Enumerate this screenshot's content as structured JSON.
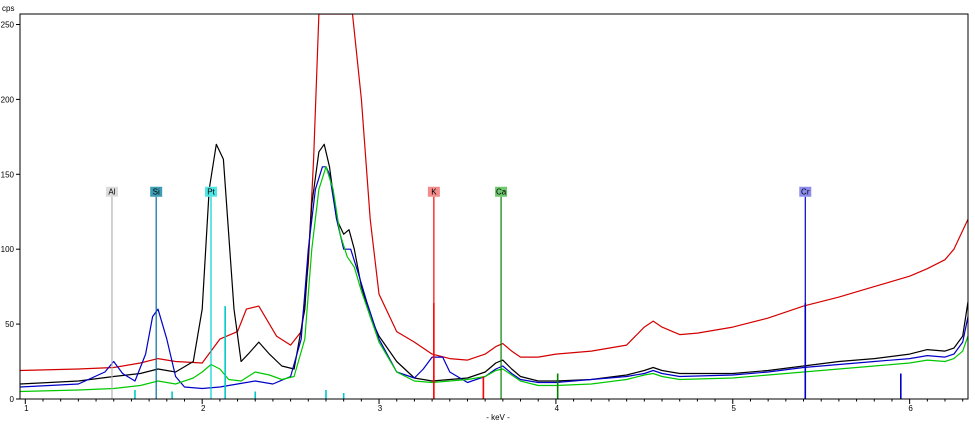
{
  "chart_data": {
    "type": "line",
    "xlabel": "- keV -",
    "ylabel": "cps",
    "xlim": [
      0.97,
      6.33
    ],
    "ylim": [
      0,
      257
    ],
    "x_ticks": [
      1,
      2,
      3,
      4,
      5,
      6
    ],
    "x_tick_labels": [
      "1",
      "2",
      "3",
      "4",
      "5",
      "6"
    ],
    "y_ticks": [
      0,
      50,
      100,
      150,
      200,
      250
    ],
    "y_tick_labels": [
      "0",
      "50",
      "100",
      "150",
      "200",
      "250"
    ],
    "grid": false,
    "series": [
      {
        "color": "#d40000",
        "x": [
          0.97,
          1.3,
          1.5,
          1.65,
          1.75,
          1.85,
          2.0,
          2.1,
          2.2,
          2.25,
          2.32,
          2.42,
          2.5,
          2.56,
          2.6,
          2.63,
          2.66,
          2.7,
          2.75,
          2.8,
          2.85,
          2.9,
          2.95,
          3.0,
          3.1,
          3.2,
          3.3,
          3.4,
          3.5,
          3.6,
          3.66,
          3.7,
          3.75,
          3.8,
          3.9,
          4.0,
          4.2,
          4.4,
          4.5,
          4.55,
          4.6,
          4.7,
          4.8,
          5.0,
          5.2,
          5.4,
          5.6,
          5.8,
          6.0,
          6.1,
          6.2,
          6.25,
          6.33
        ],
        "y": [
          19,
          20,
          21,
          24,
          27,
          25,
          24,
          40,
          45,
          60,
          62,
          42,
          36,
          45,
          90,
          160,
          257,
          257,
          257,
          257,
          257,
          200,
          120,
          70,
          45,
          38,
          30,
          27,
          26,
          30,
          35,
          37,
          32,
          28,
          28,
          30,
          32,
          36,
          48,
          52,
          48,
          43,
          44,
          48,
          54,
          62,
          68,
          75,
          82,
          87,
          93,
          100,
          120
        ]
      },
      {
        "color": "#000000",
        "x": [
          0.97,
          1.3,
          1.5,
          1.65,
          1.75,
          1.85,
          1.95,
          2.0,
          2.04,
          2.08,
          2.12,
          2.18,
          2.22,
          2.26,
          2.32,
          2.38,
          2.45,
          2.52,
          2.58,
          2.62,
          2.66,
          2.69,
          2.72,
          2.76,
          2.8,
          2.83,
          2.86,
          2.9,
          2.95,
          3.0,
          3.1,
          3.2,
          3.3,
          3.4,
          3.5,
          3.6,
          3.66,
          3.7,
          3.75,
          3.8,
          3.9,
          4.0,
          4.2,
          4.4,
          4.5,
          4.55,
          4.6,
          4.7,
          5.0,
          5.2,
          5.4,
          5.6,
          5.8,
          6.0,
          6.1,
          6.2,
          6.25,
          6.3,
          6.33
        ],
        "y": [
          10,
          12,
          15,
          17,
          20,
          18,
          25,
          60,
          140,
          170,
          160,
          60,
          25,
          30,
          38,
          30,
          22,
          20,
          60,
          130,
          165,
          170,
          155,
          120,
          110,
          113,
          100,
          75,
          55,
          42,
          25,
          14,
          12,
          13,
          14,
          18,
          24,
          26,
          20,
          15,
          12,
          12,
          13,
          16,
          19,
          21,
          19,
          17,
          17,
          19,
          22,
          25,
          27,
          30,
          33,
          32,
          34,
          42,
          65
        ]
      },
      {
        "color": "#0000c8",
        "x": [
          0.97,
          1.3,
          1.45,
          1.5,
          1.55,
          1.62,
          1.68,
          1.72,
          1.75,
          1.8,
          1.85,
          1.9,
          2.0,
          2.1,
          2.2,
          2.3,
          2.4,
          2.5,
          2.56,
          2.6,
          2.64,
          2.68,
          2.7,
          2.72,
          2.76,
          2.8,
          2.84,
          2.88,
          2.93,
          3.0,
          3.1,
          3.2,
          3.25,
          3.3,
          3.36,
          3.4,
          3.5,
          3.6,
          3.66,
          3.7,
          3.75,
          3.8,
          3.9,
          4.0,
          4.2,
          4.4,
          4.5,
          4.55,
          4.6,
          4.7,
          5.0,
          5.2,
          5.4,
          5.6,
          5.8,
          6.0,
          6.1,
          6.2,
          6.25,
          6.3,
          6.33
        ],
        "y": [
          8,
          10,
          18,
          25,
          17,
          12,
          30,
          55,
          60,
          40,
          15,
          8,
          7,
          8,
          10,
          12,
          10,
          15,
          40,
          100,
          140,
          155,
          155,
          150,
          120,
          100,
          100,
          85,
          65,
          40,
          18,
          14,
          20,
          28,
          28,
          18,
          11,
          15,
          20,
          22,
          17,
          13,
          11,
          11,
          13,
          15,
          17,
          19,
          17,
          15,
          16,
          18,
          21,
          23,
          25,
          27,
          29,
          28,
          30,
          38,
          55
        ]
      },
      {
        "color": "#00c800",
        "x": [
          0.97,
          1.3,
          1.5,
          1.65,
          1.75,
          1.85,
          1.95,
          2.0,
          2.05,
          2.1,
          2.15,
          2.22,
          2.3,
          2.38,
          2.45,
          2.52,
          2.58,
          2.62,
          2.66,
          2.7,
          2.74,
          2.78,
          2.82,
          2.86,
          2.9,
          2.95,
          3.0,
          3.1,
          3.2,
          3.3,
          3.4,
          3.5,
          3.6,
          3.66,
          3.7,
          3.75,
          3.8,
          3.9,
          4.0,
          4.2,
          4.4,
          4.5,
          4.55,
          4.6,
          4.7,
          5.0,
          5.2,
          5.4,
          5.6,
          5.8,
          6.0,
          6.1,
          6.2,
          6.25,
          6.3,
          6.33
        ],
        "y": [
          5,
          6,
          7,
          9,
          12,
          10,
          14,
          18,
          23,
          20,
          13,
          12,
          18,
          16,
          13,
          15,
          40,
          100,
          140,
          155,
          140,
          110,
          95,
          88,
          72,
          55,
          38,
          18,
          12,
          11,
          12,
          13,
          15,
          19,
          20,
          16,
          12,
          9,
          9,
          10,
          13,
          16,
          17,
          15,
          13,
          14,
          16,
          18,
          20,
          22,
          24,
          26,
          25,
          27,
          32,
          42
        ]
      }
    ],
    "element_markers": [
      {
        "label": "Al",
        "x": 1.49,
        "height": 135,
        "color": "#b4b4b4",
        "bg": "#dcdcdc"
      },
      {
        "label": "Si",
        "x": 1.74,
        "height": 135,
        "color": "#006e9a",
        "bg": "#3c9db4"
      },
      {
        "label": "Pt",
        "x": 2.05,
        "height": 135,
        "color": "#00d2d2",
        "bg": "#50e6e6"
      },
      {
        "label": "K",
        "x": 3.31,
        "height": 135,
        "color": "#ff0000",
        "bg": "#f58c8c"
      },
      {
        "label": "Ca",
        "x": 3.69,
        "height": 135,
        "color": "#008200",
        "bg": "#6ec86e"
      },
      {
        "label": "Cr",
        "x": 5.41,
        "height": 135,
        "color": "#0000c8",
        "bg": "#8c8cf0"
      }
    ],
    "element_sublines": [
      {
        "x": 1.62,
        "height": 6,
        "color": "#00c8c8"
      },
      {
        "x": 1.83,
        "height": 5,
        "color": "#00c8c8"
      },
      {
        "x": 2.13,
        "height": 62,
        "color": "#00c8c8"
      },
      {
        "x": 2.3,
        "height": 5,
        "color": "#00c8c8"
      },
      {
        "x": 2.7,
        "height": 6,
        "color": "#00c8c8"
      },
      {
        "x": 2.8,
        "height": 4,
        "color": "#00c8c8"
      },
      {
        "x": 3.31,
        "height": 64,
        "color": "#ff0000"
      },
      {
        "x": 3.59,
        "height": 15,
        "color": "#ff0000"
      },
      {
        "x": 4.01,
        "height": 17,
        "color": "#008200"
      },
      {
        "x": 5.41,
        "height": 64,
        "color": "#0000c8"
      },
      {
        "x": 5.95,
        "height": 17,
        "color": "#0000c8"
      }
    ]
  }
}
